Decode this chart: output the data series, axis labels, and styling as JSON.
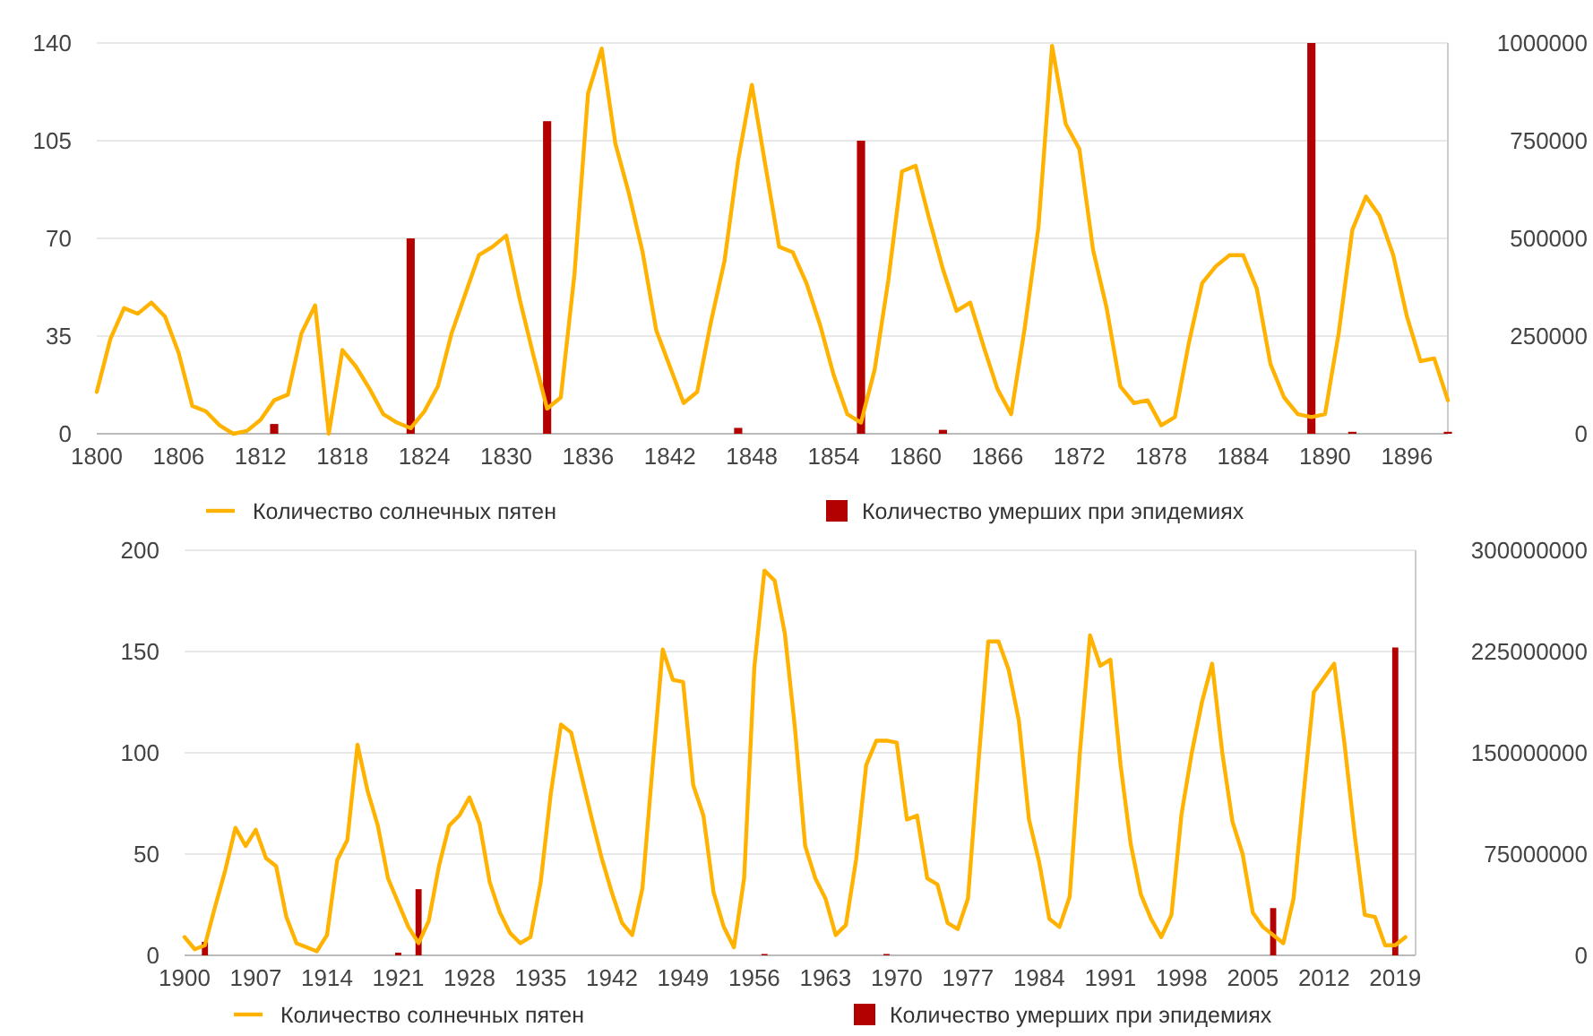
{
  "chart_data": [
    {
      "type": "line",
      "xlim": [
        1800,
        1899
      ],
      "xticks": [
        1800,
        1806,
        1812,
        1818,
        1824,
        1830,
        1836,
        1842,
        1848,
        1854,
        1860,
        1866,
        1872,
        1878,
        1884,
        1890,
        1896
      ],
      "ylim": [
        0,
        140
      ],
      "yticks": [
        0,
        35,
        70,
        105,
        140
      ],
      "y2lim": [
        0,
        1000000
      ],
      "y2ticks": [
        0,
        250000,
        500000,
        750000,
        1000000
      ],
      "grid": "y",
      "legend": "bottom",
      "series": [
        {
          "name": "Количество солнечных пятен",
          "color": "#ffb300",
          "x": [
            1800,
            1801,
            1802,
            1803,
            1804,
            1805,
            1806,
            1807,
            1808,
            1809,
            1810,
            1811,
            1812,
            1813,
            1814,
            1815,
            1816,
            1817,
            1818,
            1819,
            1820,
            1821,
            1822,
            1823,
            1824,
            1825,
            1826,
            1827,
            1828,
            1829,
            1830,
            1831,
            1832,
            1833,
            1834,
            1835,
            1836,
            1837,
            1838,
            1839,
            1840,
            1841,
            1842,
            1843,
            1844,
            1845,
            1846,
            1847,
            1848,
            1849,
            1850,
            1851,
            1852,
            1853,
            1854,
            1855,
            1856,
            1857,
            1858,
            1859,
            1860,
            1861,
            1862,
            1863,
            1864,
            1865,
            1866,
            1867,
            1868,
            1869,
            1870,
            1871,
            1872,
            1873,
            1874,
            1875,
            1876,
            1877,
            1878,
            1879,
            1880,
            1881,
            1882,
            1883,
            1884,
            1885,
            1886,
            1887,
            1888,
            1889,
            1890,
            1891,
            1892,
            1893,
            1894,
            1895,
            1896,
            1897,
            1898,
            1899
          ],
          "values": [
            15,
            34,
            45,
            43,
            47,
            42,
            29,
            10,
            8,
            3,
            0,
            1,
            5,
            12,
            14,
            36,
            46,
            0,
            30,
            24,
            16,
            7,
            4,
            2,
            8,
            17,
            36,
            50,
            64,
            67,
            71,
            48,
            28,
            9,
            13,
            57,
            122,
            138,
            104,
            86,
            65,
            37,
            24,
            11,
            15,
            40,
            62,
            98,
            125,
            96,
            67,
            65,
            54,
            39,
            21,
            7,
            4,
            23,
            55,
            94,
            96,
            77,
            59,
            44,
            47,
            31,
            16,
            7,
            38,
            74,
            139,
            111,
            102,
            66,
            45,
            17,
            11,
            12,
            3,
            6,
            32,
            54,
            60,
            64,
            64,
            52,
            25,
            13,
            7,
            6,
            7,
            36,
            73,
            85,
            78,
            64,
            42,
            26,
            27,
            12
          ]
        },
        {
          "name": "Количество умерших при эпидемиях",
          "type": "bar",
          "axis": "y2",
          "color": "#b30000",
          "x": [
            1813,
            1823,
            1833,
            1847,
            1856,
            1862,
            1889,
            1892,
            1899
          ],
          "values": [
            25000,
            500000,
            800000,
            15000,
            750000,
            10000,
            1000000,
            5000,
            5000
          ]
        }
      ]
    },
    {
      "type": "line",
      "xlim": [
        1900,
        2021
      ],
      "xticks": [
        1900,
        1907,
        1914,
        1921,
        1928,
        1935,
        1942,
        1949,
        1956,
        1963,
        1970,
        1977,
        1984,
        1991,
        1998,
        2005,
        2012,
        2019
      ],
      "ylim": [
        0,
        200
      ],
      "yticks": [
        0,
        50,
        100,
        150,
        200
      ],
      "y2lim": [
        0,
        300000000
      ],
      "y2ticks": [
        0,
        75000000,
        150000000,
        225000000,
        300000000
      ],
      "grid": "y",
      "legend": "bottom",
      "series": [
        {
          "name": "Количество солнечных пятен",
          "color": "#ffb300",
          "x": [
            1900,
            1901,
            1902,
            1903,
            1904,
            1905,
            1906,
            1907,
            1908,
            1909,
            1910,
            1911,
            1912,
            1913,
            1914,
            1915,
            1916,
            1917,
            1918,
            1919,
            1920,
            1921,
            1922,
            1923,
            1924,
            1925,
            1926,
            1927,
            1928,
            1929,
            1930,
            1931,
            1932,
            1933,
            1934,
            1935,
            1936,
            1937,
            1938,
            1939,
            1940,
            1941,
            1942,
            1943,
            1944,
            1945,
            1946,
            1947,
            1948,
            1949,
            1950,
            1951,
            1952,
            1953,
            1954,
            1955,
            1956,
            1957,
            1958,
            1959,
            1960,
            1961,
            1962,
            1963,
            1964,
            1965,
            1966,
            1967,
            1968,
            1969,
            1970,
            1971,
            1972,
            1973,
            1974,
            1975,
            1976,
            1977,
            1978,
            1979,
            1980,
            1981,
            1982,
            1983,
            1984,
            1985,
            1986,
            1987,
            1988,
            1989,
            1990,
            1991,
            1992,
            1993,
            1994,
            1995,
            1996,
            1997,
            1998,
            1999,
            2000,
            2001,
            2002,
            2003,
            2004,
            2005,
            2006,
            2007,
            2008,
            2009,
            2010,
            2011,
            2012,
            2013,
            2014,
            2015,
            2016,
            2017,
            2018,
            2019,
            2020
          ],
          "values": [
            9,
            3,
            5,
            24,
            42,
            63,
            54,
            62,
            48,
            44,
            19,
            6,
            4,
            2,
            10,
            47,
            57,
            104,
            81,
            64,
            38,
            26,
            14,
            6,
            17,
            44,
            64,
            69,
            78,
            65,
            36,
            21,
            11,
            6,
            9,
            36,
            80,
            114,
            110,
            89,
            68,
            48,
            31,
            16,
            10,
            33,
            93,
            151,
            136,
            135,
            84,
            69,
            31,
            14,
            4,
            38,
            142,
            190,
            185,
            159,
            112,
            54,
            38,
            28,
            10,
            15,
            47,
            94,
            106,
            106,
            105,
            67,
            69,
            38,
            35,
            16,
            13,
            28,
            93,
            155,
            155,
            141,
            116,
            67,
            46,
            18,
            14,
            29,
            100,
            158,
            143,
            146,
            94,
            55,
            30,
            18,
            9,
            20,
            70,
            100,
            125,
            144,
            100,
            66,
            50,
            21,
            14,
            10,
            6,
            28,
            80,
            130,
            137,
            144,
            105,
            60,
            20,
            19,
            5,
            5,
            9
          ]
        },
        {
          "name": "Количество умерших при эпидемиях",
          "type": "bar",
          "axis": "y2",
          "color": "#b30000",
          "x": [
            1902,
            1921,
            1923,
            1957,
            1969,
            2007,
            2019
          ],
          "values": [
            10000000,
            2000000,
            49000000,
            1000000,
            1000000,
            35000000,
            228000000
          ]
        }
      ]
    }
  ]
}
